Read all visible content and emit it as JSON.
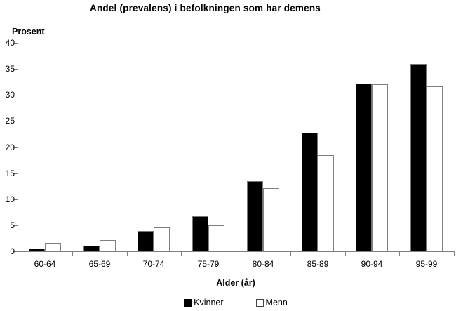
{
  "chart_data": {
    "type": "bar",
    "title": "Andel (prevalens) i befolkningen som har demens",
    "ylabel": "Prosent",
    "xlabel": "Alder (år)",
    "categories": [
      "60-64",
      "65-69",
      "70-74",
      "75-79",
      "80-84",
      "85-89",
      "90-94",
      "95-99"
    ],
    "series": [
      {
        "name": "Kvinner",
        "color": "#000000",
        "values": [
          0.5,
          1.1,
          3.9,
          6.7,
          13.5,
          22.8,
          32.2,
          36.0
        ]
      },
      {
        "name": "Menn",
        "color": "#ffffff",
        "values": [
          1.6,
          2.2,
          4.6,
          5.0,
          12.1,
          18.5,
          32.1,
          31.6
        ]
      }
    ],
    "ylim": [
      0,
      40
    ],
    "ytick_step": 5,
    "grid": false,
    "legend_position": "bottom",
    "axis_color": "#808080"
  }
}
